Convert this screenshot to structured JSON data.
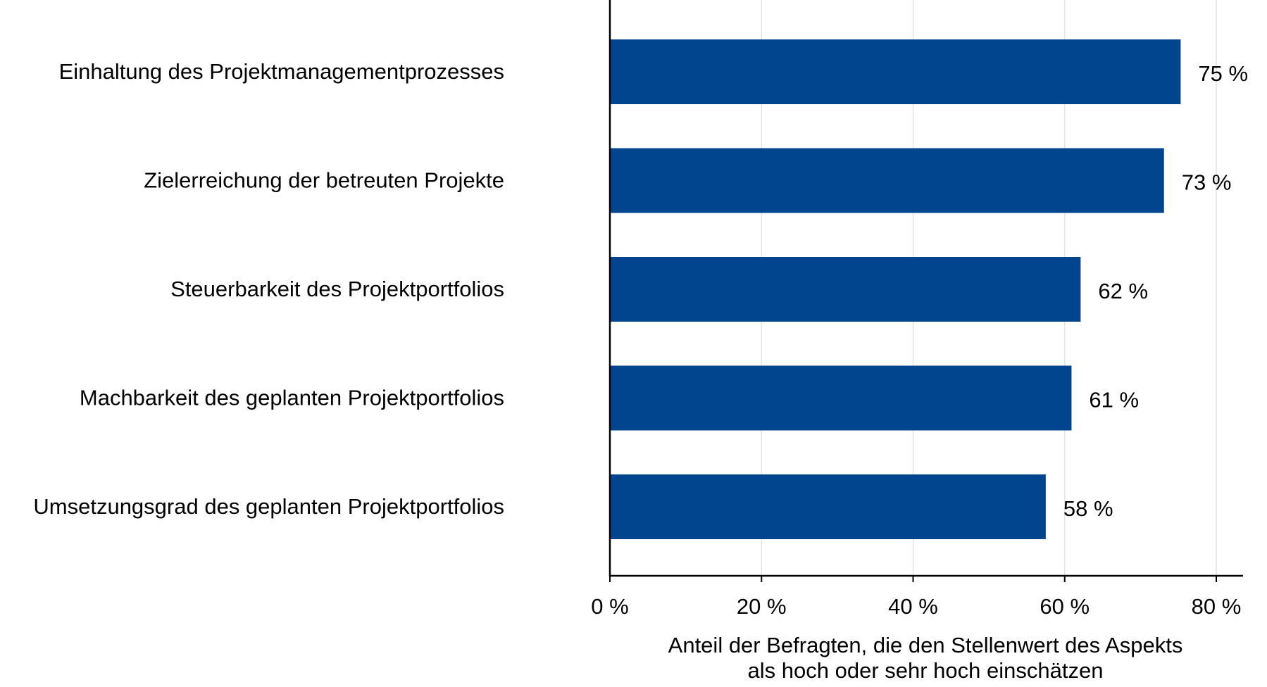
{
  "chart_data": {
    "type": "bar",
    "orientation": "horizontal",
    "categories": [
      "Einhaltung des Projektmanagementprozesses",
      "Zielerreichung der betreuten Projekte",
      "Steuerbarkeit des Projektportfolios",
      "Machbarkeit des geplanten Projektportfolios",
      "Umsetzungsgrad des geplanten Projektportfolios"
    ],
    "values": [
      75.3,
      73.1,
      62.1,
      60.9,
      57.5
    ],
    "value_labels": [
      "75 %",
      "73 %",
      "62 %",
      "61 %",
      "58 %"
    ],
    "xlim": [
      0,
      83
    ],
    "xticks": [
      0,
      20,
      40,
      60,
      80
    ],
    "xtick_labels": [
      "0 %",
      "20 %",
      "40 %",
      "60 %",
      "80 %"
    ],
    "xlabel": [
      "Anteil der Befragten, die den Stellenwert des Aspekts",
      "als hoch oder sehr hoch einschätzen"
    ],
    "grid": "vertical",
    "bar_color": "#02458f",
    "grid_color": "#e3e3e3"
  }
}
